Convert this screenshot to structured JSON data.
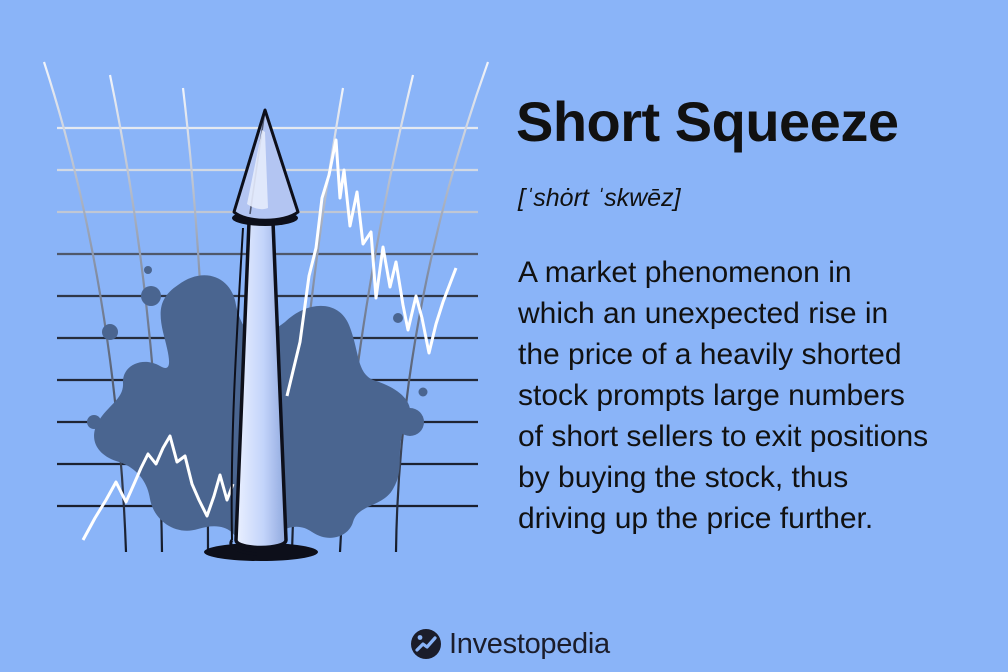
{
  "term": {
    "title": "Short Squeeze",
    "pronunciation": "[ˈshȯrt ˈskwēz]",
    "definition_lines": [
      "A market phenomenon in",
      "which an unexpected rise in",
      "the price of a heavily shorted",
      "stock prompts large numbers",
      "of short sellers to exit positions",
      "by buying the stock, thus",
      "driving up the price further."
    ]
  },
  "brand": {
    "name": "Investopedia",
    "logo_icon": "investopedia-logo-icon"
  },
  "illustration": {
    "icons": [
      "warped-grid",
      "ink-splash",
      "up-arrow",
      "zigzag-price-line"
    ]
  },
  "colors": {
    "background": "#8ab4f8",
    "text": "#111111",
    "splash": "#4a6590",
    "arrow_fill": "#bed0f7",
    "arrow_outline": "#0d0f1a",
    "price_line": "#ffffff",
    "brand_text": "#1b1d2b"
  }
}
